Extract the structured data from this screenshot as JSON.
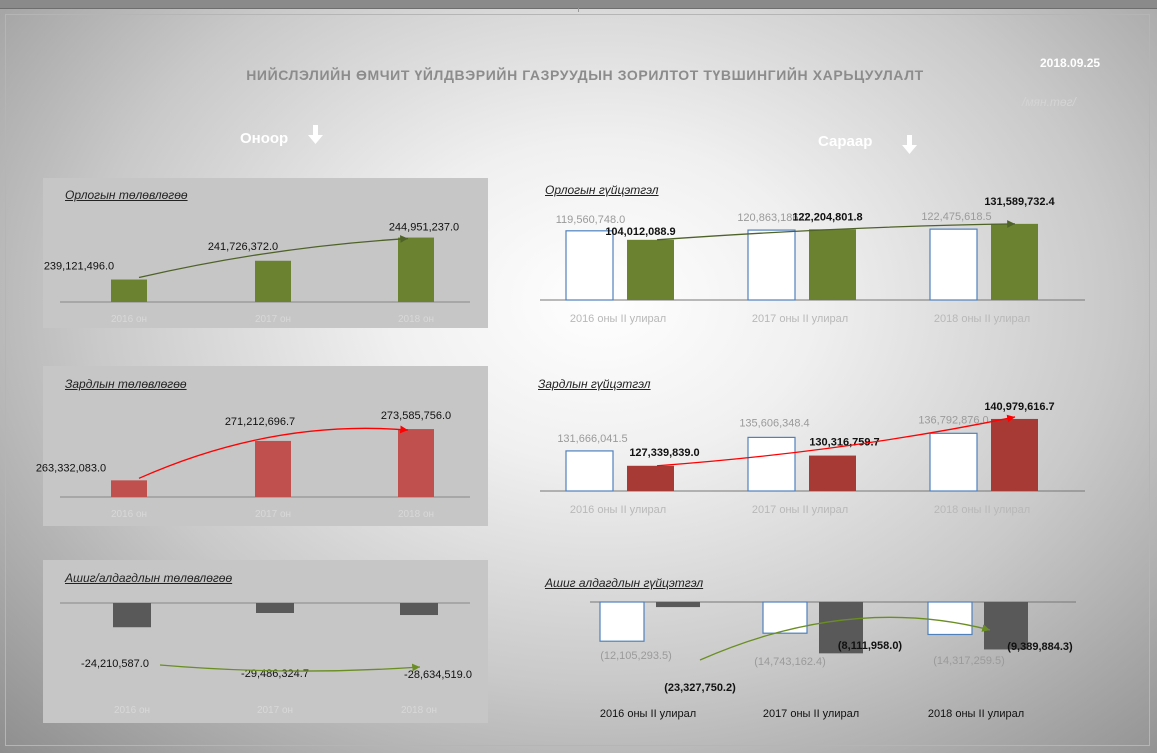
{
  "page": {
    "title": "НИЙСЛЭЛИЙН ӨМЧИТ ҮЙЛДВЭРИЙН ГАЗРУУДЫН ЗОРИЛТОТ ТҮВШИНГИЙН ХАРЬЦУУЛАЛТ",
    "date": "2018.09.25",
    "unit": "/мян.төг/",
    "left_heading": "Оноор",
    "right_heading": "Сараар"
  },
  "colors": {
    "income": "#6b8230",
    "expense": "#c0504d",
    "expense_actual": "#a83a36",
    "profit": "#595959",
    "plan_outline": "#4f81bd",
    "arrow_income": "#4f6228",
    "arrow_expense": "#ff0000",
    "arrow_profit": "#6b8e23"
  },
  "chart_data": [
    {
      "id": "income_plan",
      "type": "bar",
      "title": "Орлогын төлөвлөгөө",
      "categories": [
        "2016 он",
        "2017 он",
        "2018 он"
      ],
      "values": [
        239121496.0,
        241726372.0,
        244951237.0
      ],
      "labels": [
        "239,121,496.0",
        "241,726,372.0",
        "244,951,237.0"
      ],
      "ylim": [
        236000000,
        246000000
      ]
    },
    {
      "id": "expense_plan",
      "type": "bar",
      "title": "Зардлын төлөвлөгөө",
      "categories": [
        "2016 он",
        "2017 он",
        "2018 он"
      ],
      "values": [
        263332083.0,
        271212696.7,
        273585756.0
      ],
      "labels": [
        "263,332,083.0",
        "271,212,696.7",
        "273,585,756.0"
      ],
      "ylim": [
        260000000,
        275000000
      ]
    },
    {
      "id": "profit_plan",
      "type": "bar",
      "title": "Ашиг/алдагдлын төлөвлөгөө",
      "categories": [
        "2016 он",
        "2017 он",
        "2018 он"
      ],
      "values": [
        -24210587.0,
        -29486324.7,
        -28634519.0
      ],
      "labels": [
        "-24,210,587.0",
        "-29,486,324.7",
        "-28,634,519.0"
      ],
      "ylim": [
        -33000000,
        0
      ]
    },
    {
      "id": "income_actual",
      "type": "bar",
      "title": "Орлогын гүйцэтгэл",
      "categories": [
        "2016 оны II улирал",
        "2017 оны II улирал",
        "2018 оны II улирал"
      ],
      "series": [
        {
          "values": [
            119560748.0,
            120863186.0,
            122475618.5
          ],
          "labels": [
            "119,560,748.0",
            "120,863,186.0",
            "122,475,618.5"
          ]
        },
        {
          "values": [
            104012088.9,
            122204801.8,
            131589732.4
          ],
          "labels": [
            "104,012,088.9",
            "122,204,801.8",
            "131,589,732.4"
          ]
        }
      ],
      "ylim": [
        0,
        140000000
      ]
    },
    {
      "id": "expense_actual",
      "type": "bar",
      "title": "Зардлын гүйцэтгэл",
      "categories": [
        "2016 оны II улирал",
        "2017 оны II улирал",
        "2018 оны II улирал"
      ],
      "series": [
        {
          "values": [
            131666041.5,
            135606348.4,
            136792876.0
          ],
          "labels": [
            "131,666,041.5",
            "135,606,348.4",
            "136,792,876.0"
          ]
        },
        {
          "values": [
            127339839.0,
            130316759.7,
            140979616.7
          ],
          "labels": [
            "127,339,839.0",
            "130,316,759.7",
            "140,979,616.7"
          ]
        }
      ],
      "ylim": [
        120000000,
        143000000
      ]
    },
    {
      "id": "profit_actual",
      "type": "bar",
      "title": "Ашиг алдагдлын гүйцэтгэл",
      "categories": [
        "2016 оны II улирал",
        "2017 оны II улирал",
        "2018 оны II улирал"
      ],
      "series": [
        {
          "values": [
            -12105293.5,
            -14743162.4,
            -14317259.5
          ],
          "labels": [
            "(12,105,293.5)",
            "(14,743,162.4)",
            "(14,317,259.5)"
          ]
        },
        {
          "values": [
            -23327750.2,
            -8111958.0,
            -9389884.3
          ],
          "labels": [
            "(23,327,750.2)",
            "(8,111,958.0)",
            "(9,389,884.3)"
          ]
        }
      ],
      "ylim": [
        -25000000,
        0
      ]
    }
  ]
}
